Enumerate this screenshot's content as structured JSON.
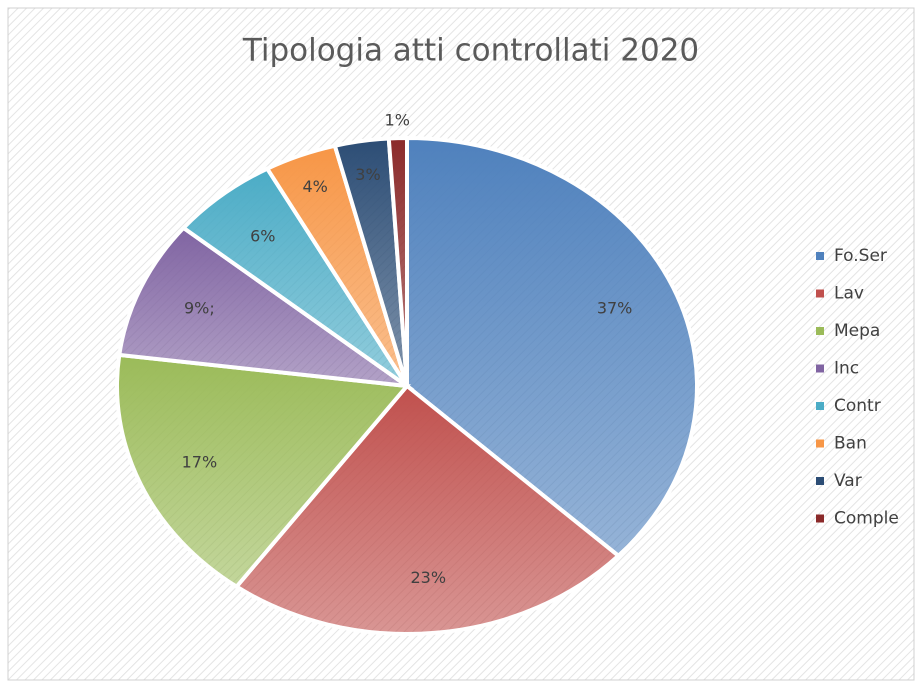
{
  "chart_data": {
    "type": "pie",
    "title": "Tipologia atti controllati 2020",
    "categories": [
      "Fo.Ser",
      "Lav",
      "Mepa",
      "Inc",
      "Contr",
      "Ban",
      "Var",
      "Comple"
    ],
    "values": [
      37,
      23,
      17,
      9,
      6,
      4,
      3,
      1
    ],
    "value_labels": [
      "37%",
      "23%",
      "17%",
      "9%;",
      "6%",
      "4%",
      "3%",
      "1%"
    ],
    "colors": [
      "#4f81bd",
      "#c0504d",
      "#9bbb59",
      "#8064a2",
      "#4bacc6",
      "#f79646",
      "#2c4d75",
      "#8b2a2a"
    ],
    "legend": "right"
  }
}
